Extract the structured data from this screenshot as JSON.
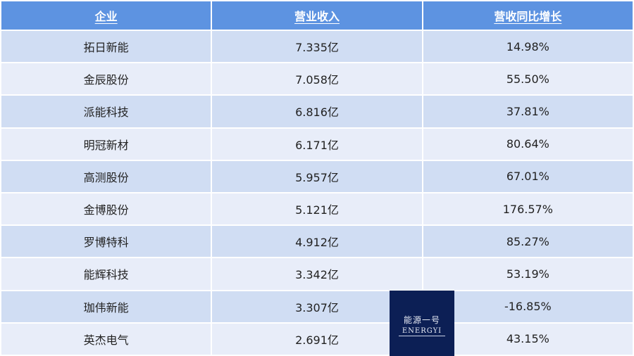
{
  "table": {
    "headers": [
      "企业",
      "营业收入",
      "营收同比增长"
    ],
    "rows": [
      [
        "拓日新能",
        "7.335亿",
        "14.98%"
      ],
      [
        "金辰股份",
        "7.058亿",
        "55.50%"
      ],
      [
        "派能科技",
        "6.816亿",
        "37.81%"
      ],
      [
        "明冠新材",
        "6.171亿",
        "80.64%"
      ],
      [
        "高测股份",
        "5.957亿",
        "67.01%"
      ],
      [
        "金博股份",
        "5.121亿",
        "176.57%"
      ],
      [
        "罗博特科",
        "4.912亿",
        "85.27%"
      ],
      [
        "能辉科技",
        "3.342亿",
        "53.19%"
      ],
      [
        "珈伟新能",
        "3.307亿",
        "-16.85%"
      ],
      [
        "英杰电气",
        "2.691亿",
        "43.15%"
      ]
    ]
  },
  "watermark": {
    "cn": "能源一号",
    "en": "ENERGYI"
  },
  "colors": {
    "header": "#5d93e1",
    "row_odd": "#d0ddf3",
    "row_even": "#e8edf9",
    "watermark_bg": "#0c1f55"
  }
}
